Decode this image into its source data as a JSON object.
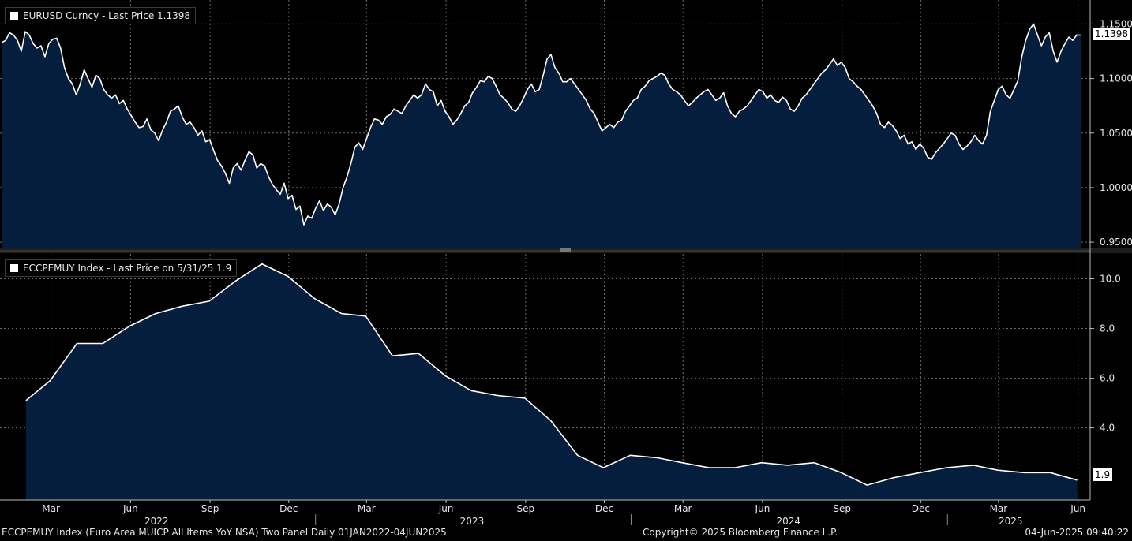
{
  "top_panel": {
    "legend": "EURUSD Curncy - Last Price 1.1398",
    "last_value_tag": "1.1398"
  },
  "bottom_panel": {
    "legend": "ECCPEMUY Index - Last Price on 5/31/25 1.9",
    "last_value_tag": "1.9"
  },
  "footer": {
    "left": "ECCPEMUY Index (Euro Area MUICP All Items YoY NSA) Two Panel  Daily 01JAN2022-04JUN2025",
    "center": "Copyright© 2025 Bloomberg Finance L.P.",
    "right": "04-Jun-2025 09:40:22"
  },
  "colors": {
    "background": "#000000",
    "area_fill": "#061e3d",
    "line": "#ffffff",
    "grid": "#6d6d6d"
  },
  "chart_data": [
    {
      "type": "area",
      "series": [
        {
          "name": "EURUSD Curncy",
          "x_start": "2022-01-03",
          "x_end": "2025-06-04",
          "values": [
            1.133,
            1.135,
            1.142,
            1.14,
            1.135,
            1.125,
            1.143,
            1.14,
            1.132,
            1.128,
            1.13,
            1.12,
            1.132,
            1.136,
            1.137,
            1.128,
            1.11,
            1.1,
            1.095,
            1.085,
            1.095,
            1.108,
            1.1,
            1.092,
            1.103,
            1.1,
            1.09,
            1.085,
            1.082,
            1.085,
            1.077,
            1.08,
            1.072,
            1.066,
            1.06,
            1.055,
            1.056,
            1.063,
            1.053,
            1.05,
            1.043,
            1.053,
            1.06,
            1.07,
            1.072,
            1.075,
            1.065,
            1.058,
            1.06,
            1.055,
            1.048,
            1.052,
            1.042,
            1.044,
            1.034,
            1.025,
            1.02,
            1.013,
            1.004,
            1.018,
            1.022,
            1.016,
            1.025,
            1.033,
            1.03,
            1.018,
            1.022,
            1.02,
            1.01,
            1.003,
            0.998,
            0.994,
            1.004,
            0.99,
            0.993,
            0.98,
            0.983,
            0.966,
            0.974,
            0.972,
            0.981,
            0.988,
            0.979,
            0.985,
            0.982,
            0.975,
            0.985,
            1.0,
            1.01,
            1.022,
            1.037,
            1.041,
            1.035,
            1.045,
            1.055,
            1.063,
            1.062,
            1.058,
            1.065,
            1.067,
            1.072,
            1.07,
            1.068,
            1.075,
            1.08,
            1.085,
            1.082,
            1.085,
            1.095,
            1.09,
            1.088,
            1.075,
            1.08,
            1.07,
            1.065,
            1.058,
            1.062,
            1.068,
            1.075,
            1.078,
            1.087,
            1.092,
            1.098,
            1.097,
            1.102,
            1.1,
            1.093,
            1.085,
            1.082,
            1.078,
            1.072,
            1.07,
            1.075,
            1.082,
            1.09,
            1.095,
            1.088,
            1.09,
            1.103,
            1.118,
            1.122,
            1.11,
            1.105,
            1.097,
            1.097,
            1.1,
            1.095,
            1.09,
            1.085,
            1.08,
            1.072,
            1.068,
            1.06,
            1.052,
            1.055,
            1.058,
            1.055,
            1.06,
            1.062,
            1.07,
            1.075,
            1.08,
            1.082,
            1.09,
            1.093,
            1.098,
            1.1,
            1.102,
            1.105,
            1.103,
            1.095,
            1.09,
            1.088,
            1.085,
            1.08,
            1.075,
            1.078,
            1.082,
            1.085,
            1.088,
            1.09,
            1.085,
            1.08,
            1.082,
            1.087,
            1.075,
            1.068,
            1.065,
            1.07,
            1.072,
            1.075,
            1.08,
            1.085,
            1.09,
            1.088,
            1.082,
            1.085,
            1.08,
            1.078,
            1.083,
            1.08,
            1.072,
            1.07,
            1.075,
            1.082,
            1.085,
            1.09,
            1.095,
            1.1,
            1.105,
            1.108,
            1.113,
            1.118,
            1.112,
            1.115,
            1.11,
            1.1,
            1.097,
            1.093,
            1.09,
            1.085,
            1.08,
            1.075,
            1.068,
            1.058,
            1.055,
            1.06,
            1.057,
            1.052,
            1.045,
            1.048,
            1.04,
            1.042,
            1.035,
            1.04,
            1.036,
            1.028,
            1.026,
            1.032,
            1.036,
            1.04,
            1.045,
            1.05,
            1.048,
            1.04,
            1.035,
            1.038,
            1.042,
            1.048,
            1.043,
            1.04,
            1.048,
            1.07,
            1.08,
            1.09,
            1.093,
            1.085,
            1.082,
            1.09,
            1.098,
            1.12,
            1.135,
            1.145,
            1.15,
            1.14,
            1.13,
            1.138,
            1.142,
            1.125,
            1.115,
            1.125,
            1.132,
            1.138,
            1.135,
            1.14,
            1.1398
          ]
        }
      ],
      "y_ticks": [
        0.95,
        1.0,
        1.05,
        1.1,
        1.15
      ],
      "y_tick_labels": [
        "0.9500",
        "1.0000",
        "1.0500",
        "1.1000",
        "1.1500"
      ],
      "ylim": [
        0.945,
        1.172
      ]
    },
    {
      "type": "area",
      "series": [
        {
          "name": "ECCPEMUY Index",
          "dates": [
            "2022-01-31",
            "2022-02-28",
            "2022-03-31",
            "2022-04-30",
            "2022-05-31",
            "2022-06-30",
            "2022-07-31",
            "2022-08-31",
            "2022-09-30",
            "2022-10-31",
            "2022-11-30",
            "2022-12-31",
            "2023-01-31",
            "2023-02-28",
            "2023-03-31",
            "2023-04-30",
            "2023-05-31",
            "2023-06-30",
            "2023-07-31",
            "2023-08-31",
            "2023-09-30",
            "2023-10-31",
            "2023-11-30",
            "2023-12-31",
            "2024-01-31",
            "2024-02-29",
            "2024-03-31",
            "2024-04-30",
            "2024-05-31",
            "2024-06-30",
            "2024-07-31",
            "2024-08-31",
            "2024-09-30",
            "2024-10-31",
            "2024-11-30",
            "2024-12-31",
            "2025-01-31",
            "2025-02-28",
            "2025-03-31",
            "2025-04-30",
            "2025-05-31"
          ],
          "values": [
            5.1,
            5.9,
            7.4,
            7.4,
            8.1,
            8.6,
            8.9,
            9.1,
            9.9,
            10.6,
            10.1,
            9.2,
            8.6,
            8.5,
            6.9,
            7.0,
            6.1,
            5.5,
            5.3,
            5.2,
            4.3,
            2.9,
            2.4,
            2.9,
            2.8,
            2.6,
            2.4,
            2.4,
            2.6,
            2.5,
            2.6,
            2.2,
            1.7,
            2.0,
            2.2,
            2.4,
            2.5,
            2.3,
            2.2,
            2.2,
            1.9
          ]
        }
      ],
      "y_ticks": [
        4.0,
        6.0,
        8.0,
        10.0
      ],
      "y_tick_labels": [
        "4.0",
        "6.0",
        "8.0",
        "10.0"
      ],
      "ylim": [
        1.1,
        11.0
      ]
    }
  ],
  "x_axis": {
    "month_ticks": [
      {
        "date": "2022-03-01",
        "label": "Mar"
      },
      {
        "date": "2022-06-01",
        "label": "Jun"
      },
      {
        "date": "2022-09-01",
        "label": "Sep"
      },
      {
        "date": "2022-12-01",
        "label": "Dec"
      },
      {
        "date": "2023-03-01",
        "label": "Mar"
      },
      {
        "date": "2023-06-01",
        "label": "Jun"
      },
      {
        "date": "2023-09-01",
        "label": "Sep"
      },
      {
        "date": "2023-12-01",
        "label": "Dec"
      },
      {
        "date": "2024-03-01",
        "label": "Mar"
      },
      {
        "date": "2024-06-01",
        "label": "Jun"
      },
      {
        "date": "2024-09-01",
        "label": "Sep"
      },
      {
        "date": "2024-12-01",
        "label": "Dec"
      },
      {
        "date": "2025-03-01",
        "label": "Mar"
      },
      {
        "date": "2025-06-01",
        "label": "Jun"
      }
    ],
    "year_labels": [
      {
        "date": "2022-07-01",
        "label": "2022"
      },
      {
        "date": "2023-07-01",
        "label": "2023"
      },
      {
        "date": "2024-07-01",
        "label": "2024"
      },
      {
        "date": "2025-03-15",
        "label": "2025"
      }
    ],
    "year_dividers": [
      "2023-01-01",
      "2024-01-01",
      "2025-01-01"
    ],
    "range": [
      "2022-01-01",
      "2025-06-15"
    ]
  }
}
